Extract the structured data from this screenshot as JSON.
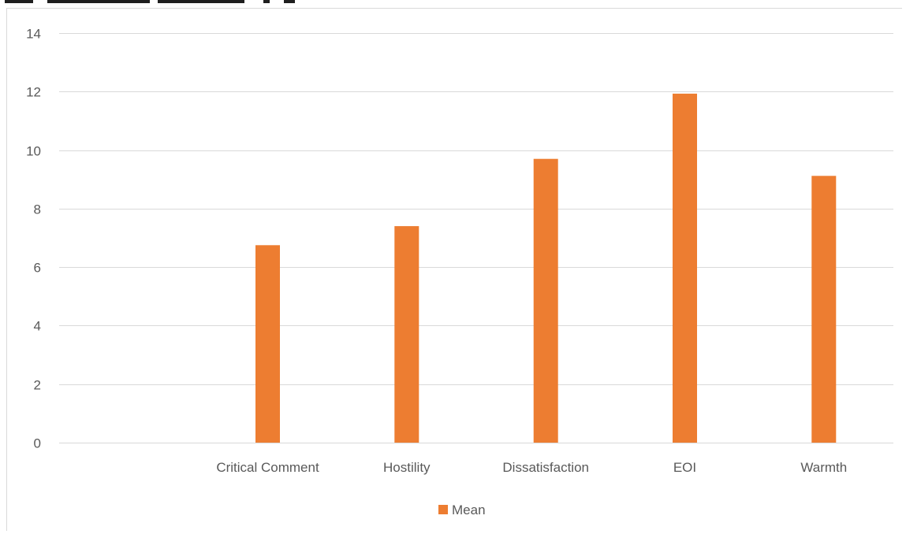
{
  "chart_data": {
    "type": "bar",
    "title": "",
    "xlabel": "",
    "ylabel": "",
    "categories": [
      "",
      "Critical Comment",
      "Hostility",
      "Dissatisfaction",
      "EOI",
      "Warmth"
    ],
    "series": [
      {
        "name": "Mean",
        "values": [
          null,
          6.75,
          7.4,
          9.7,
          11.93,
          9.12
        ],
        "color": "#ED7D31"
      }
    ],
    "ylim": [
      0,
      14
    ],
    "yticks": [
      0,
      2,
      4,
      6,
      8,
      10,
      12,
      14
    ],
    "grid": true,
    "legend_position": "bottom",
    "gridline_color": "#d9d9d9",
    "text_color": "#595959"
  }
}
